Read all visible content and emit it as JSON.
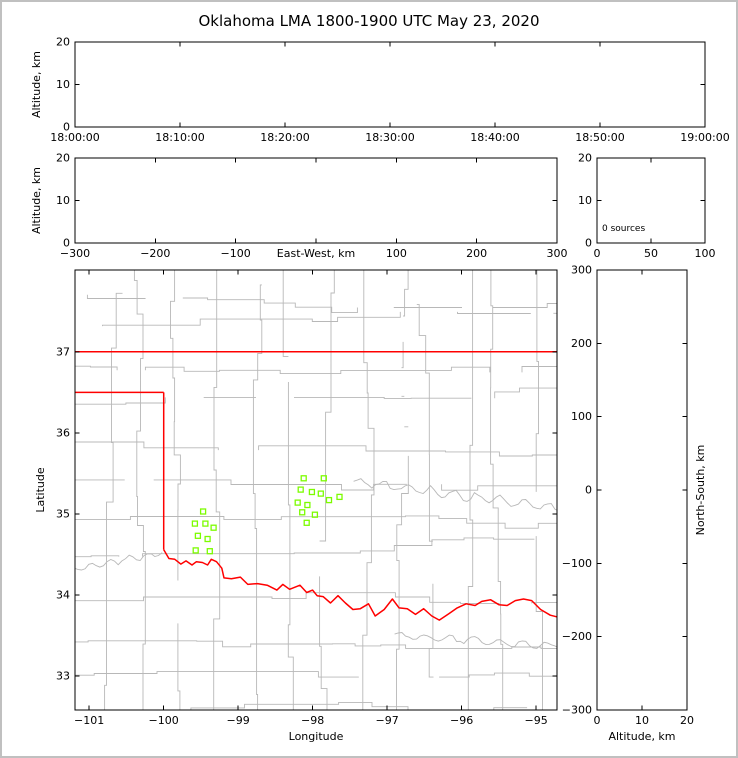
{
  "title": "Oklahoma LMA 1800-1900 UTC May 23, 2020",
  "colors": {
    "axes": "#000000",
    "county_lines": "#b8b8b8",
    "state_border": "#ff0000",
    "station_marker": "#7cfc00",
    "background": "#ffffff",
    "frame": "#c0c0c0"
  },
  "chart_data": [
    {
      "id": "time_height",
      "type": "scatter",
      "ylabel": "Altitude, km",
      "xlim": [
        0,
        3600
      ],
      "ylim": [
        0,
        20
      ],
      "xtick_values": [
        0,
        600,
        1200,
        1800,
        2400,
        3000,
        3600
      ],
      "xtick_labels": [
        "18:00:00",
        "18:10:00",
        "18:20:00",
        "18:30:00",
        "18:40:00",
        "18:50:00",
        "19:00:00"
      ],
      "ytick_values": [
        0,
        10,
        20
      ],
      "ytick_labels": [
        "0",
        "10",
        "20"
      ],
      "points": []
    },
    {
      "id": "ew_height",
      "type": "scatter",
      "xlabel": "East-West, km",
      "xlabel_inline": true,
      "ylabel": "Altitude, km",
      "xlim": [
        -300,
        300
      ],
      "ylim": [
        0,
        20
      ],
      "xtick_values": [
        -300,
        -200,
        -100,
        0,
        100,
        200,
        300
      ],
      "xtick_labels": [
        "−300",
        "−200",
        "−100",
        "",
        "100",
        "200",
        "300"
      ],
      "ytick_values": [
        0,
        10,
        20
      ],
      "ytick_labels": [
        "0",
        "10",
        "20"
      ],
      "points": []
    },
    {
      "id": "hist",
      "type": "histogram",
      "annotation": "0 sources",
      "xlim": [
        0,
        100
      ],
      "ylim": [
        0,
        20
      ],
      "xtick_values": [
        0,
        50,
        100
      ],
      "xtick_labels": [
        "0",
        "50",
        "100"
      ],
      "ytick_values": [
        0,
        10,
        20
      ],
      "ytick_labels": [
        "0",
        "10",
        "20"
      ],
      "points": []
    },
    {
      "id": "map",
      "type": "scatter",
      "xlabel": "Longitude",
      "ylabel": "Latitude",
      "xlim": [
        -101.19,
        -94.72
      ],
      "ylim": [
        32.58,
        38.01
      ],
      "xtick_values": [
        -101,
        -100,
        -99,
        -98,
        -97,
        -96,
        -95
      ],
      "xtick_labels": [
        "−101",
        "−100",
        "−99",
        "−98",
        "−97",
        "−96",
        "−95"
      ],
      "ytick_values": [
        33,
        34,
        35,
        36,
        37
      ],
      "ytick_labels": [
        "33",
        "34",
        "35",
        "36",
        "37"
      ],
      "stations": [
        [
          -99.47,
          35.03
        ],
        [
          -99.58,
          34.88
        ],
        [
          -99.44,
          34.88
        ],
        [
          -99.33,
          34.83
        ],
        [
          -99.54,
          34.73
        ],
        [
          -99.41,
          34.69
        ],
        [
          -99.57,
          34.55
        ],
        [
          -99.38,
          34.54
        ],
        [
          -98.12,
          35.44
        ],
        [
          -97.85,
          35.44
        ],
        [
          -98.16,
          35.3
        ],
        [
          -98.01,
          35.27
        ],
        [
          -97.89,
          35.25
        ],
        [
          -98.2,
          35.14
        ],
        [
          -98.07,
          35.11
        ],
        [
          -97.78,
          35.17
        ],
        [
          -97.64,
          35.21
        ],
        [
          -98.14,
          35.02
        ],
        [
          -97.97,
          34.99
        ],
        [
          -98.08,
          34.89
        ]
      ],
      "state_border": [
        [
          [
            -101.3,
            37.0
          ],
          [
            -94.5,
            37.0
          ]
        ],
        [
          [
            -101.3,
            36.5
          ],
          [
            -100.0,
            36.5
          ]
        ],
        [
          [
            -100.0,
            36.5
          ],
          [
            -100.0,
            34.56
          ]
        ],
        [
          [
            -100.0,
            34.56
          ],
          [
            -99.93,
            34.45
          ],
          [
            -99.85,
            34.44
          ],
          [
            -99.77,
            34.38
          ],
          [
            -99.7,
            34.42
          ],
          [
            -99.62,
            34.37
          ],
          [
            -99.56,
            34.41
          ],
          [
            -99.48,
            34.4
          ],
          [
            -99.41,
            34.37
          ],
          [
            -99.36,
            34.44
          ],
          [
            -99.29,
            34.41
          ],
          [
            -99.22,
            34.33
          ],
          [
            -99.19,
            34.21
          ],
          [
            -99.09,
            34.2
          ],
          [
            -98.97,
            34.22
          ],
          [
            -98.87,
            34.13
          ],
          [
            -98.74,
            34.14
          ],
          [
            -98.61,
            34.12
          ],
          [
            -98.48,
            34.06
          ],
          [
            -98.4,
            34.13
          ],
          [
            -98.31,
            34.07
          ],
          [
            -98.17,
            34.12
          ],
          [
            -98.08,
            34.03
          ],
          [
            -98.0,
            34.06
          ],
          [
            -97.94,
            33.99
          ],
          [
            -97.86,
            33.98
          ],
          [
            -97.76,
            33.9
          ],
          [
            -97.66,
            33.99
          ],
          [
            -97.56,
            33.9
          ],
          [
            -97.46,
            33.82
          ],
          [
            -97.36,
            33.83
          ],
          [
            -97.25,
            33.89
          ],
          [
            -97.16,
            33.74
          ],
          [
            -97.04,
            33.82
          ],
          [
            -96.93,
            33.95
          ],
          [
            -96.84,
            33.84
          ],
          [
            -96.73,
            33.83
          ],
          [
            -96.62,
            33.76
          ],
          [
            -96.51,
            33.83
          ],
          [
            -96.4,
            33.74
          ],
          [
            -96.3,
            33.69
          ],
          [
            -96.17,
            33.77
          ],
          [
            -96.06,
            33.84
          ],
          [
            -95.94,
            33.89
          ],
          [
            -95.82,
            33.87
          ],
          [
            -95.73,
            33.92
          ],
          [
            -95.61,
            33.94
          ],
          [
            -95.5,
            33.88
          ],
          [
            -95.39,
            33.87
          ],
          [
            -95.28,
            33.93
          ],
          [
            -95.17,
            33.95
          ],
          [
            -95.06,
            33.93
          ],
          [
            -94.94,
            33.82
          ],
          [
            -94.81,
            33.75
          ],
          [
            -94.68,
            33.72
          ],
          [
            -94.5,
            33.64
          ]
        ]
      ]
    },
    {
      "id": "ns_height",
      "type": "scatter",
      "xlabel": "Altitude, km",
      "ylabel_right": "North-South, km",
      "xlim": [
        0,
        20
      ],
      "ylim": [
        -300,
        300
      ],
      "xtick_values": [
        0,
        10,
        20
      ],
      "xtick_labels": [
        "0",
        "10",
        "20"
      ],
      "ytick_values": [
        -300,
        -200,
        -100,
        0,
        100,
        200,
        300
      ],
      "ytick_labels": [
        "−300",
        "−200",
        "−100",
        "0",
        "100",
        "200",
        "300"
      ],
      "points": []
    }
  ]
}
